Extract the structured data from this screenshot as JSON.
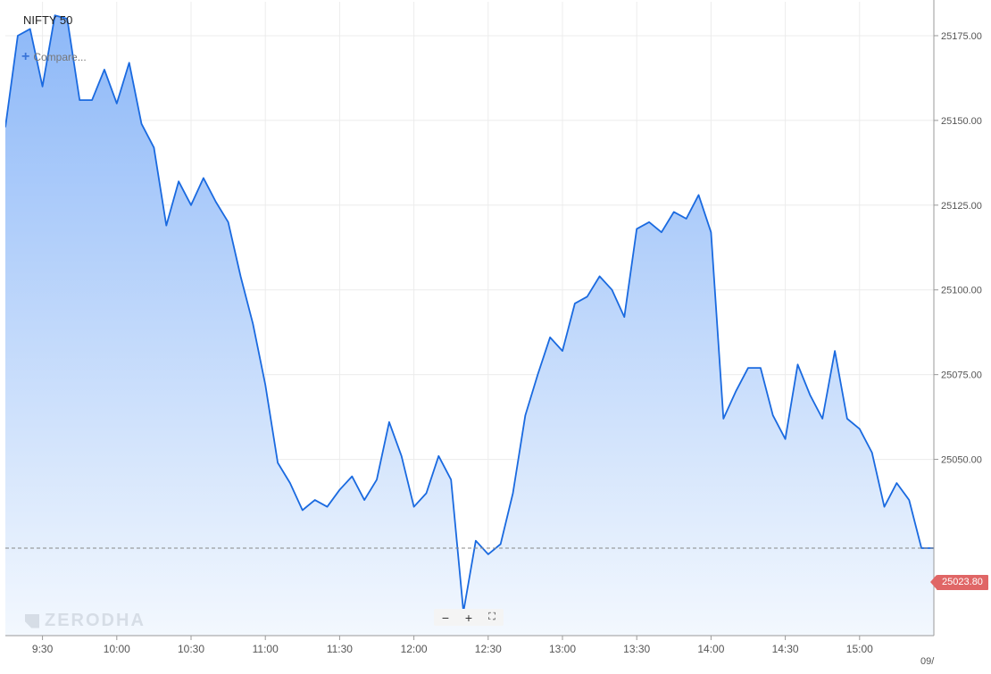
{
  "header": {
    "symbol": "NIFTY 50",
    "compare_label": "Compare..."
  },
  "watermark": "ZERODHA",
  "zoom": {
    "minus": "−",
    "plus": "+",
    "fullscreen": "⛶"
  },
  "last_price_label": "25023.80",
  "date_label": "09/",
  "colors": {
    "line": "#1a6ae0",
    "fill_top": "#8db8f8",
    "fill_bottom": "#f3f8fe",
    "last_price": "#e06666",
    "grid": "#ececec"
  },
  "chart_data": {
    "type": "area",
    "title": "NIFTY 50",
    "xlabel": "",
    "ylabel": "",
    "y_ticks": [
      25050,
      25075,
      25100,
      25125,
      25150,
      25175
    ],
    "y_tick_labels": [
      "25050.00",
      "25075.00",
      "25100.00",
      "25125.00",
      "25150.00",
      "25175.00"
    ],
    "x_tick_labels": [
      "9:30",
      "10:00",
      "10:30",
      "11:00",
      "11:30",
      "12:00",
      "12:30",
      "13:00",
      "13:30",
      "14:00",
      "14:30",
      "15:00"
    ],
    "ylim": [
      24998,
      25185
    ],
    "xlim": [
      "9:15",
      "15:30"
    ],
    "last_price": 25023.8,
    "grid": true,
    "series": [
      {
        "x": [
          "9:15",
          "9:20",
          "9:25",
          "9:30",
          "9:35",
          "9:40",
          "9:45",
          "9:50",
          "9:55",
          "10:00",
          "10:05",
          "10:10",
          "10:15",
          "10:20",
          "10:25",
          "10:30",
          "10:35",
          "10:40",
          "10:45",
          "10:50",
          "10:55",
          "11:00",
          "11:05",
          "11:10",
          "11:15",
          "11:20",
          "11:25",
          "11:30",
          "11:35",
          "11:40",
          "11:45",
          "11:50",
          "11:55",
          "12:00",
          "12:05",
          "12:10",
          "12:15",
          "12:20",
          "12:25",
          "12:30",
          "12:35",
          "12:40",
          "12:45",
          "12:50",
          "12:55",
          "13:00",
          "13:05",
          "13:10",
          "13:15",
          "13:20",
          "13:25",
          "13:30",
          "13:35",
          "13:40",
          "13:45",
          "13:50",
          "13:55",
          "14:00",
          "14:05",
          "14:10",
          "14:15",
          "14:20",
          "14:25",
          "14:30",
          "14:35",
          "14:40",
          "14:45",
          "14:50",
          "14:55",
          "15:00",
          "15:05",
          "15:10",
          "15:15",
          "15:20",
          "15:25",
          "15:30"
        ],
        "values": [
          25148,
          25175,
          25177,
          25160,
          25181,
          25180,
          25156,
          25156,
          25165,
          25155,
          25167,
          25149,
          25142,
          25119,
          25132,
          25125,
          25133,
          25126,
          25120,
          25104,
          25090,
          25072,
          25049,
          25043,
          25035,
          25038,
          25036,
          25041,
          25045,
          25038,
          25044,
          25061,
          25051,
          25036,
          25040,
          25051,
          25044,
          25005,
          25026,
          25022,
          25025,
          25040,
          25063,
          25075,
          25086,
          25082,
          25096,
          25098,
          25104,
          25100,
          25092,
          25118,
          25120,
          25117,
          25123,
          25121,
          25128,
          25117,
          25062,
          25070,
          25077,
          25077,
          25063,
          25056,
          25078,
          25069,
          25062,
          25082,
          25062,
          25059,
          25052,
          25036,
          25043,
          25038,
          25023.8,
          25023.8
        ]
      }
    ]
  }
}
